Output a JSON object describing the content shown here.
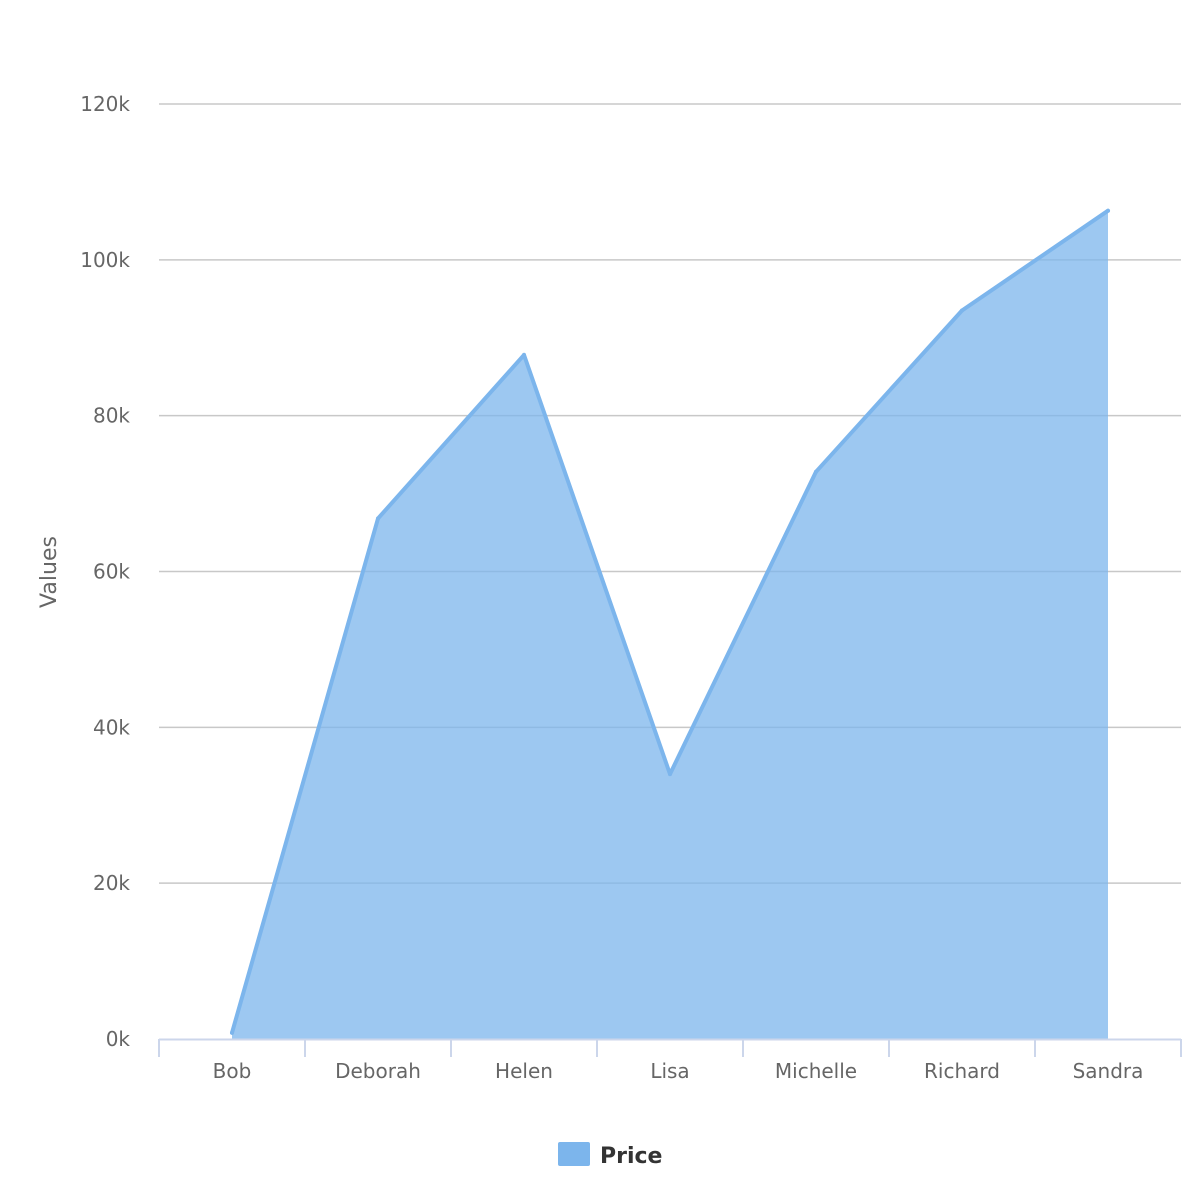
{
  "chart_data": {
    "type": "area",
    "title": "",
    "xlabel": "",
    "ylabel": "Values",
    "categories": [
      "Bob",
      "Deborah",
      "Helen",
      "Lisa",
      "Michelle",
      "Richard",
      "Sandra"
    ],
    "series": [
      {
        "name": "Price",
        "values": [
          800,
          66800,
          87800,
          34000,
          72800,
          93500,
          106300
        ],
        "color": "#7cb5ec"
      }
    ],
    "yticks": [
      "0k",
      "20k",
      "40k",
      "60k",
      "80k",
      "100k",
      "120k"
    ],
    "ylim": [
      0,
      120000
    ],
    "grid": true,
    "legend": "bottom-center"
  }
}
